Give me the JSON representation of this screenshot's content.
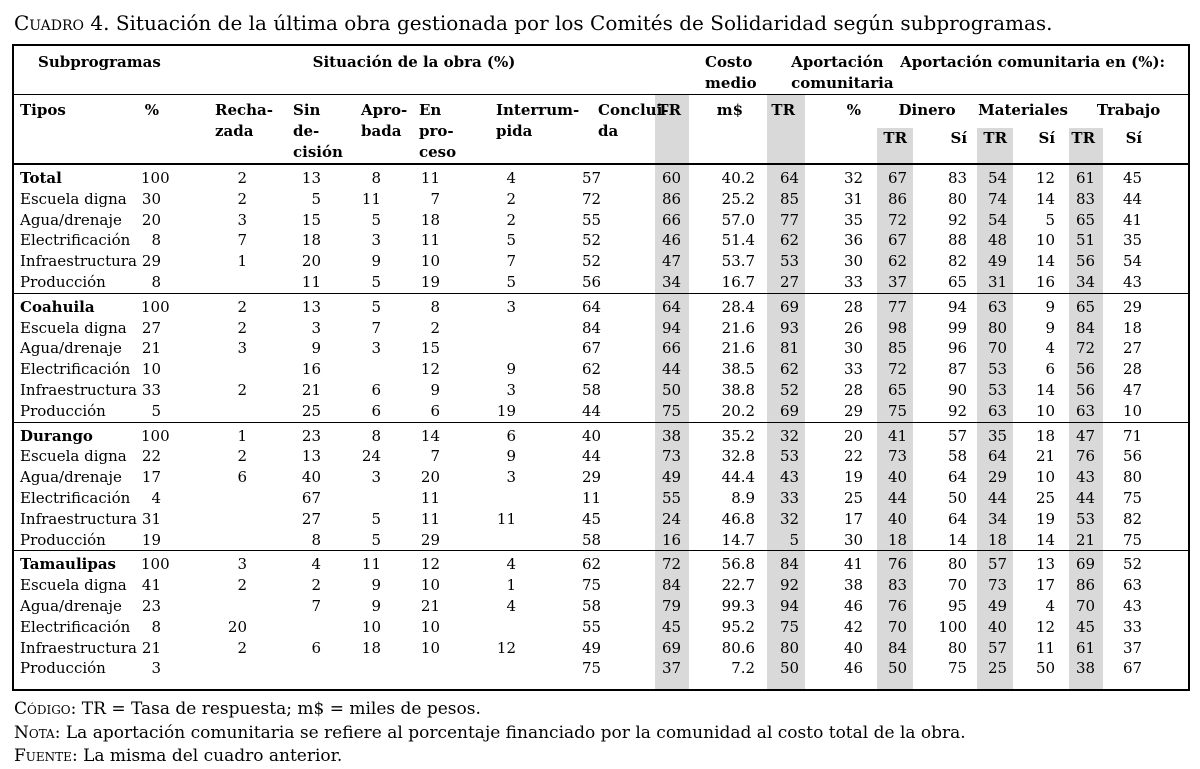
{
  "title": {
    "prefix": "Cuadro",
    "rest": " 4. Situación de la última obra gestionada por los Comités de Solidaridad según subprogramas."
  },
  "header": {
    "row1": {
      "subprogramas": "Subprogramas",
      "situacion": "Situación de la obra (%)",
      "costo_medio": "Costo\nmedio",
      "aportacion": "Aportación\ncomunitaria",
      "aportacion_pct": "Aportación comunitaria en (%):"
    },
    "row2": {
      "tipos": "Tipos",
      "pct": "%",
      "rechazada": "Recha-\nzada",
      "sin_decision": "Sin de-\ncisión",
      "aprobada": "Apro-\nbada",
      "en_proceso": "En pro-\nceso",
      "interrumpida": "Interrum-\npida",
      "concluida": "Conclui-\nda",
      "tr": "TR",
      "ms": "m$",
      "tr2": "TR",
      "pct2": "%",
      "dinero": "Dinero",
      "materiales": "Materiales",
      "trabajo": "Trabajo"
    },
    "row3": {
      "tr_si": [
        "TR",
        "Sí",
        "TR",
        "Sí",
        "TR",
        "Sí"
      ]
    }
  },
  "blocks": [
    {
      "rows": [
        [
          "Total",
          100,
          2,
          13,
          8,
          11,
          4,
          57,
          60,
          "40.2",
          64,
          32,
          67,
          83,
          54,
          12,
          61,
          45
        ],
        [
          "Escuela digna",
          30,
          2,
          5,
          11,
          7,
          2,
          72,
          86,
          "25.2",
          85,
          31,
          86,
          80,
          74,
          14,
          83,
          44
        ],
        [
          "Agua/drenaje",
          20,
          3,
          15,
          5,
          18,
          2,
          55,
          66,
          "57.0",
          77,
          35,
          72,
          92,
          54,
          5,
          65,
          41
        ],
        [
          "Electrificación",
          8,
          7,
          18,
          3,
          11,
          5,
          52,
          46,
          "51.4",
          62,
          36,
          67,
          88,
          48,
          10,
          51,
          35
        ],
        [
          "Infraestructura",
          29,
          1,
          20,
          9,
          10,
          7,
          52,
          47,
          "53.7",
          53,
          30,
          62,
          82,
          49,
          14,
          56,
          54
        ],
        [
          "Producción",
          8,
          "",
          11,
          5,
          19,
          5,
          56,
          34,
          "16.7",
          27,
          33,
          37,
          65,
          31,
          16,
          34,
          43
        ]
      ]
    },
    {
      "rows": [
        [
          "Coahuila",
          100,
          2,
          13,
          5,
          8,
          3,
          64,
          64,
          "28.4",
          69,
          28,
          77,
          94,
          63,
          9,
          65,
          29
        ],
        [
          "Escuela digna",
          27,
          2,
          3,
          7,
          2,
          "",
          84,
          94,
          "21.6",
          93,
          26,
          98,
          99,
          80,
          9,
          84,
          18
        ],
        [
          "Agua/drenaje",
          21,
          3,
          9,
          3,
          15,
          "",
          67,
          66,
          "21.6",
          81,
          30,
          85,
          96,
          70,
          4,
          72,
          27
        ],
        [
          "Electrificación",
          10,
          "",
          16,
          "",
          12,
          9,
          62,
          44,
          "38.5",
          62,
          33,
          72,
          87,
          53,
          6,
          56,
          28
        ],
        [
          "Infraestructura",
          33,
          2,
          21,
          6,
          9,
          3,
          58,
          50,
          "38.8",
          52,
          28,
          65,
          90,
          53,
          14,
          56,
          47
        ],
        [
          "Producción",
          5,
          "",
          25,
          6,
          6,
          19,
          44,
          75,
          "20.2",
          69,
          29,
          75,
          92,
          63,
          10,
          63,
          10
        ]
      ]
    },
    {
      "rows": [
        [
          "Durango",
          100,
          1,
          23,
          8,
          14,
          6,
          40,
          38,
          "35.2",
          32,
          20,
          41,
          57,
          35,
          18,
          47,
          71
        ],
        [
          "Escuela digna",
          22,
          2,
          13,
          24,
          7,
          9,
          44,
          73,
          "32.8",
          53,
          22,
          73,
          58,
          64,
          21,
          76,
          56
        ],
        [
          "Agua/drenaje",
          17,
          6,
          40,
          3,
          20,
          3,
          29,
          49,
          "44.4",
          43,
          19,
          40,
          64,
          29,
          10,
          43,
          80
        ],
        [
          "Electrificación",
          4,
          "",
          67,
          "",
          11,
          "",
          11,
          55,
          "8.9",
          33,
          25,
          44,
          50,
          44,
          25,
          44,
          75
        ],
        [
          "Infraestructura",
          31,
          "",
          27,
          5,
          11,
          11,
          45,
          24,
          "46.8",
          32,
          17,
          40,
          64,
          34,
          19,
          53,
          82
        ],
        [
          "Producción",
          19,
          "",
          8,
          5,
          29,
          "",
          58,
          16,
          "14.7",
          5,
          30,
          18,
          14,
          18,
          14,
          21,
          75
        ]
      ]
    },
    {
      "rows": [
        [
          "Tamaulipas",
          100,
          3,
          4,
          11,
          12,
          4,
          62,
          72,
          "56.8",
          84,
          41,
          76,
          80,
          57,
          13,
          69,
          52
        ],
        [
          "Escuela digna",
          41,
          2,
          2,
          9,
          10,
          1,
          75,
          84,
          "22.7",
          92,
          38,
          83,
          70,
          73,
          17,
          86,
          63
        ],
        [
          "Agua/drenaje",
          23,
          "",
          7,
          9,
          21,
          4,
          58,
          79,
          "99.3",
          94,
          46,
          76,
          95,
          49,
          4,
          70,
          43
        ],
        [
          "Electrificación",
          8,
          20,
          "",
          10,
          10,
          "",
          55,
          45,
          "95.2",
          75,
          42,
          70,
          100,
          40,
          12,
          45,
          33
        ],
        [
          "Infraestructura",
          21,
          2,
          6,
          18,
          10,
          12,
          49,
          69,
          "80.6",
          80,
          40,
          84,
          80,
          57,
          11,
          61,
          37
        ],
        [
          "Producción",
          3,
          "",
          "",
          "",
          "",
          "",
          75,
          37,
          "7.2",
          50,
          46,
          50,
          75,
          25,
          50,
          38,
          67
        ]
      ]
    }
  ],
  "notes": [
    {
      "label": "Código",
      "text": ": TR = Tasa de respuesta; m$ = miles de pesos."
    },
    {
      "label": "Nota",
      "text": ": La aportación comunitaria se refiere al porcentaje financiado por la comunidad al costo total de la obra."
    },
    {
      "label": "Fuente",
      "text": ": La misma del cuadro anterior."
    }
  ]
}
